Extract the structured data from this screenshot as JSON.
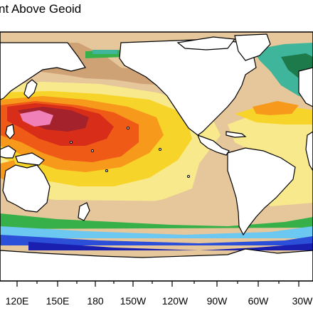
{
  "figure": {
    "title": "nt Above Geoid",
    "x_tick_labels": [
      "120E",
      "150E",
      "180",
      "150W",
      "120W",
      "90W",
      "60W",
      "30W"
    ]
  },
  "colors": {
    "ocean_beige": "#e6c79b",
    "tan": "#cfa276",
    "light_yellow": "#f8ea8c",
    "yellow": "#f7d42a",
    "orange": "#f79a1c",
    "red_orange": "#ef5a16",
    "red": "#d82d18",
    "dark_red": "#a3222c",
    "pink": "#f080b8",
    "green": "#38b04a",
    "dark_green": "#1d7a4a",
    "teal": "#3fb59b",
    "light_blue": "#6cc8f0",
    "blue": "#2b4fd8",
    "dark_blue": "#1a1fb0",
    "land": "#ffffff",
    "coast": "#000000"
  }
}
